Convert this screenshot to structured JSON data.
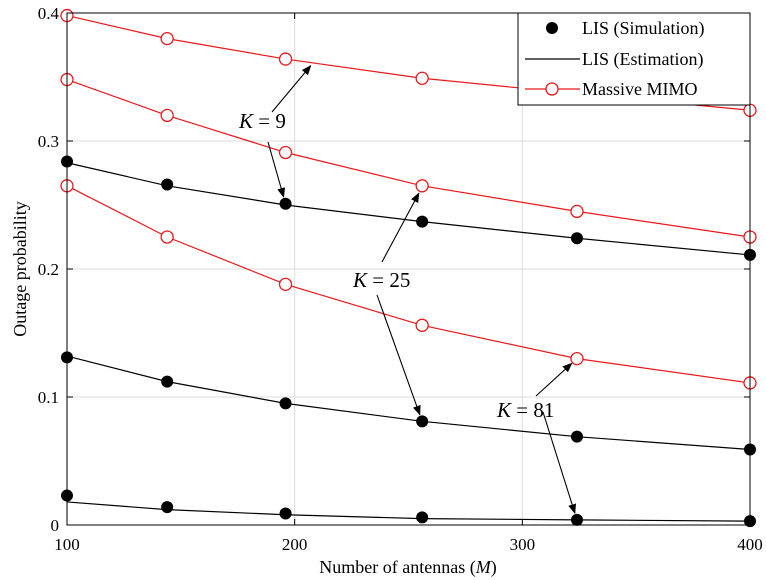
{
  "chart_data": {
    "type": "line",
    "xlabel_prefix": "Number of antennas (",
    "xlabel_var": "M",
    "xlabel_suffix": ")",
    "ylabel": "Outage probability",
    "xlim": [
      100,
      400
    ],
    "ylim": [
      0,
      0.4
    ],
    "xticks": [
      100,
      200,
      300,
      400
    ],
    "xtick_labels": [
      "100",
      "200",
      "300",
      "400"
    ],
    "yticks": [
      0,
      0.1,
      0.2,
      0.3,
      0.4
    ],
    "ytick_labels": [
      "0",
      "0.1",
      "0.2",
      "0.3",
      "0.4"
    ],
    "grid": true,
    "legend_position": "top-right",
    "legend": [
      {
        "label": "LIS (Simulation)",
        "style": "black-dot"
      },
      {
        "label": "LIS (Estimation)",
        "style": "black-line"
      },
      {
        "label": "Massive MIMO",
        "style": "red-circle-line"
      }
    ],
    "x": [
      100,
      144,
      196,
      256,
      324,
      400
    ],
    "series": [
      {
        "group": "K = 9",
        "kind": "massive-mimo",
        "values": [
          0.398,
          0.38,
          0.364,
          0.349,
          0.337,
          0.324
        ]
      },
      {
        "group": "K = 25",
        "kind": "massive-mimo",
        "values": [
          0.348,
          0.32,
          0.291,
          0.265,
          0.245,
          0.225
        ]
      },
      {
        "group": "K = 81",
        "kind": "massive-mimo",
        "values": [
          0.265,
          0.225,
          0.188,
          0.156,
          0.13,
          0.111
        ]
      },
      {
        "group": "K = 9",
        "kind": "lis-estimation",
        "values": [
          0.283,
          0.265,
          0.25,
          0.237,
          0.224,
          0.211
        ]
      },
      {
        "group": "K = 9",
        "kind": "lis-simulation",
        "values": [
          0.284,
          0.266,
          0.251,
          0.237,
          0.224,
          0.211
        ]
      },
      {
        "group": "K = 25",
        "kind": "lis-estimation",
        "values": [
          0.132,
          0.112,
          0.095,
          0.081,
          0.069,
          0.059
        ]
      },
      {
        "group": "K = 25",
        "kind": "lis-simulation",
        "values": [
          0.131,
          0.112,
          0.095,
          0.081,
          0.069,
          0.059
        ]
      },
      {
        "group": "K = 81",
        "kind": "lis-estimation",
        "values": [
          0.018,
          0.012,
          0.008,
          0.005,
          0.004,
          0.003
        ]
      },
      {
        "group": "K = 81",
        "kind": "lis-simulation",
        "values": [
          0.023,
          0.014,
          0.009,
          0.006,
          0.004,
          0.003
        ]
      }
    ],
    "annotations": [
      {
        "var": "K",
        "rest": " = 9",
        "arrows": [
          [
            209,
            0.363
          ],
          [
            196,
            0.251
          ]
        ]
      },
      {
        "var": "K",
        "rest": " = 25",
        "arrows": [
          [
            256,
            0.264
          ],
          [
            256,
            0.081
          ]
        ]
      },
      {
        "var": "K",
        "rest": " = 81",
        "arrows": [
          [
            324,
            0.13
          ],
          [
            324,
            0.004
          ]
        ]
      }
    ],
    "colors": {
      "mimo": "#e8191c",
      "lis": "#000000"
    }
  }
}
